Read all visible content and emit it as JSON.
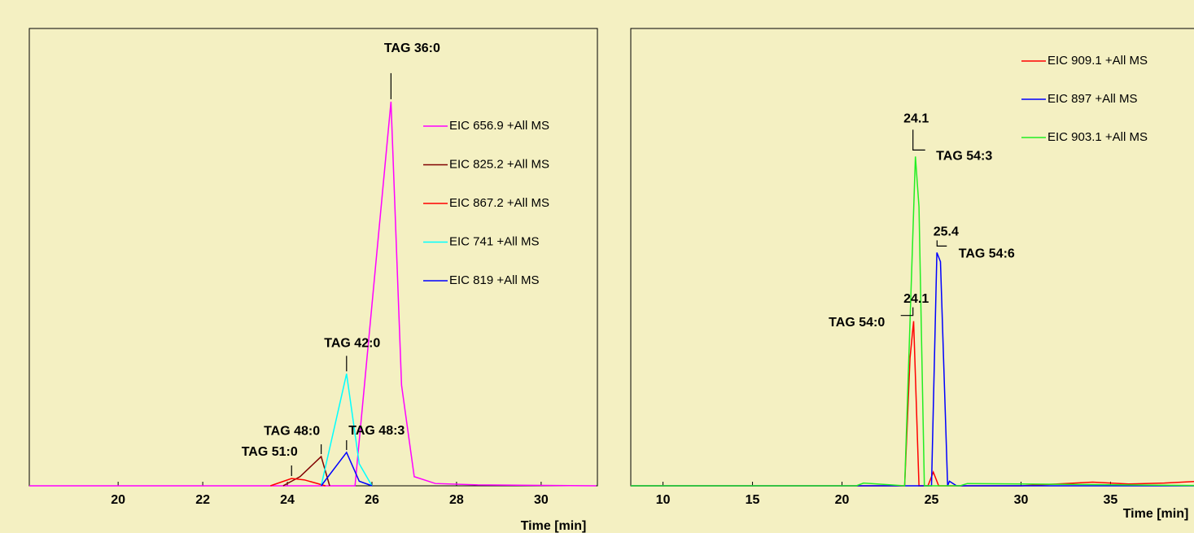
{
  "chart_data": [
    {
      "type": "line",
      "x_label": "Time [min]",
      "xlim": [
        17.9,
        31.33
      ],
      "xticks": [
        20,
        22,
        24,
        26,
        28,
        30
      ],
      "ylim": [
        0,
        100
      ],
      "series": [
        {
          "name": "EIC 656.9 +All MS",
          "color": "#ff00ff",
          "x": [
            17.9,
            25.6,
            26.45,
            26.7,
            27.0,
            27.5,
            28.5,
            31.3
          ],
          "values": [
            0,
            0,
            84,
            22,
            2,
            0.5,
            0.2,
            0
          ]
        },
        {
          "name": "EIC 825.2 +All MS",
          "color": "#800000",
          "x": [
            23.9,
            24.3,
            24.8,
            25.0
          ],
          "values": [
            0,
            2,
            6.4,
            0
          ]
        },
        {
          "name": "EIC 867.2 +All MS",
          "color": "#ff0000",
          "x": [
            23.6,
            24.1,
            24.4,
            24.9
          ],
          "values": [
            0,
            1.6,
            1.3,
            0
          ]
        },
        {
          "name": "EIC 741 +All MS",
          "color": "#00ffff",
          "x": [
            24.8,
            25.4,
            25.7,
            26.0
          ],
          "values": [
            0,
            24.5,
            4.8,
            0
          ]
        },
        {
          "name": "EIC 819 +All MS",
          "color": "#0000ff",
          "x": [
            24.8,
            25.4,
            25.7,
            26.0
          ],
          "values": [
            0,
            7.3,
            1,
            0
          ]
        }
      ],
      "annotations": [
        {
          "label": "TAG 36:0",
          "x": 26.45,
          "y": 84
        },
        {
          "label": "TAG 42:0",
          "x": 25.4,
          "y": 24.5
        },
        {
          "label": "TAG 48:0",
          "x": 24.8,
          "y": 6.4
        },
        {
          "label": "TAG 48:3",
          "x": 25.4,
          "y": 7.3
        },
        {
          "label": "TAG 51:0",
          "x": 24.1,
          "y": 1.6
        }
      ]
    },
    {
      "type": "line",
      "x_label": "Time [min]",
      "xlim": [
        8.2,
        41.3
      ],
      "xticks": [
        10,
        15,
        20,
        25,
        30,
        35
      ],
      "ylim": [
        0,
        100
      ],
      "series": [
        {
          "name": "EIC 909.1 +All MS",
          "color": "#ff0000",
          "x": [
            8.2,
            20,
            23.5,
            23.8,
            24.0,
            24.3,
            24.8,
            25.1,
            25.4,
            30,
            34,
            36,
            38,
            40,
            41.3
          ],
          "values": [
            0,
            0,
            0,
            28,
            36,
            0,
            0,
            3,
            0,
            0,
            0.8,
            0.4,
            0.6,
            1,
            2.5
          ]
        },
        {
          "name": "EIC 897 +All MS",
          "color": "#0000ff",
          "x": [
            8.2,
            25.0,
            25.3,
            25.5,
            25.9,
            26.0,
            26.4,
            41.3
          ],
          "values": [
            0,
            0,
            51,
            49,
            0,
            1,
            0,
            0
          ]
        },
        {
          "name": "EIC 903.1 +All MS",
          "color": "#22ee22",
          "x": [
            8.2,
            20.8,
            21.2,
            23.5,
            24.1,
            24.3,
            24.6,
            26.6,
            27.0,
            41.3
          ],
          "values": [
            0,
            0,
            0.6,
            0,
            72,
            61,
            0,
            0,
            0.5,
            0
          ]
        }
      ],
      "annotations": [
        {
          "label": "TAG 54:3",
          "x": 24.1,
          "y": 72
        },
        {
          "label": "TAG 54:6",
          "x": 25.4,
          "y": 51
        },
        {
          "label": "TAG 54:0",
          "x": 24.1,
          "y": 36
        }
      ]
    }
  ]
}
